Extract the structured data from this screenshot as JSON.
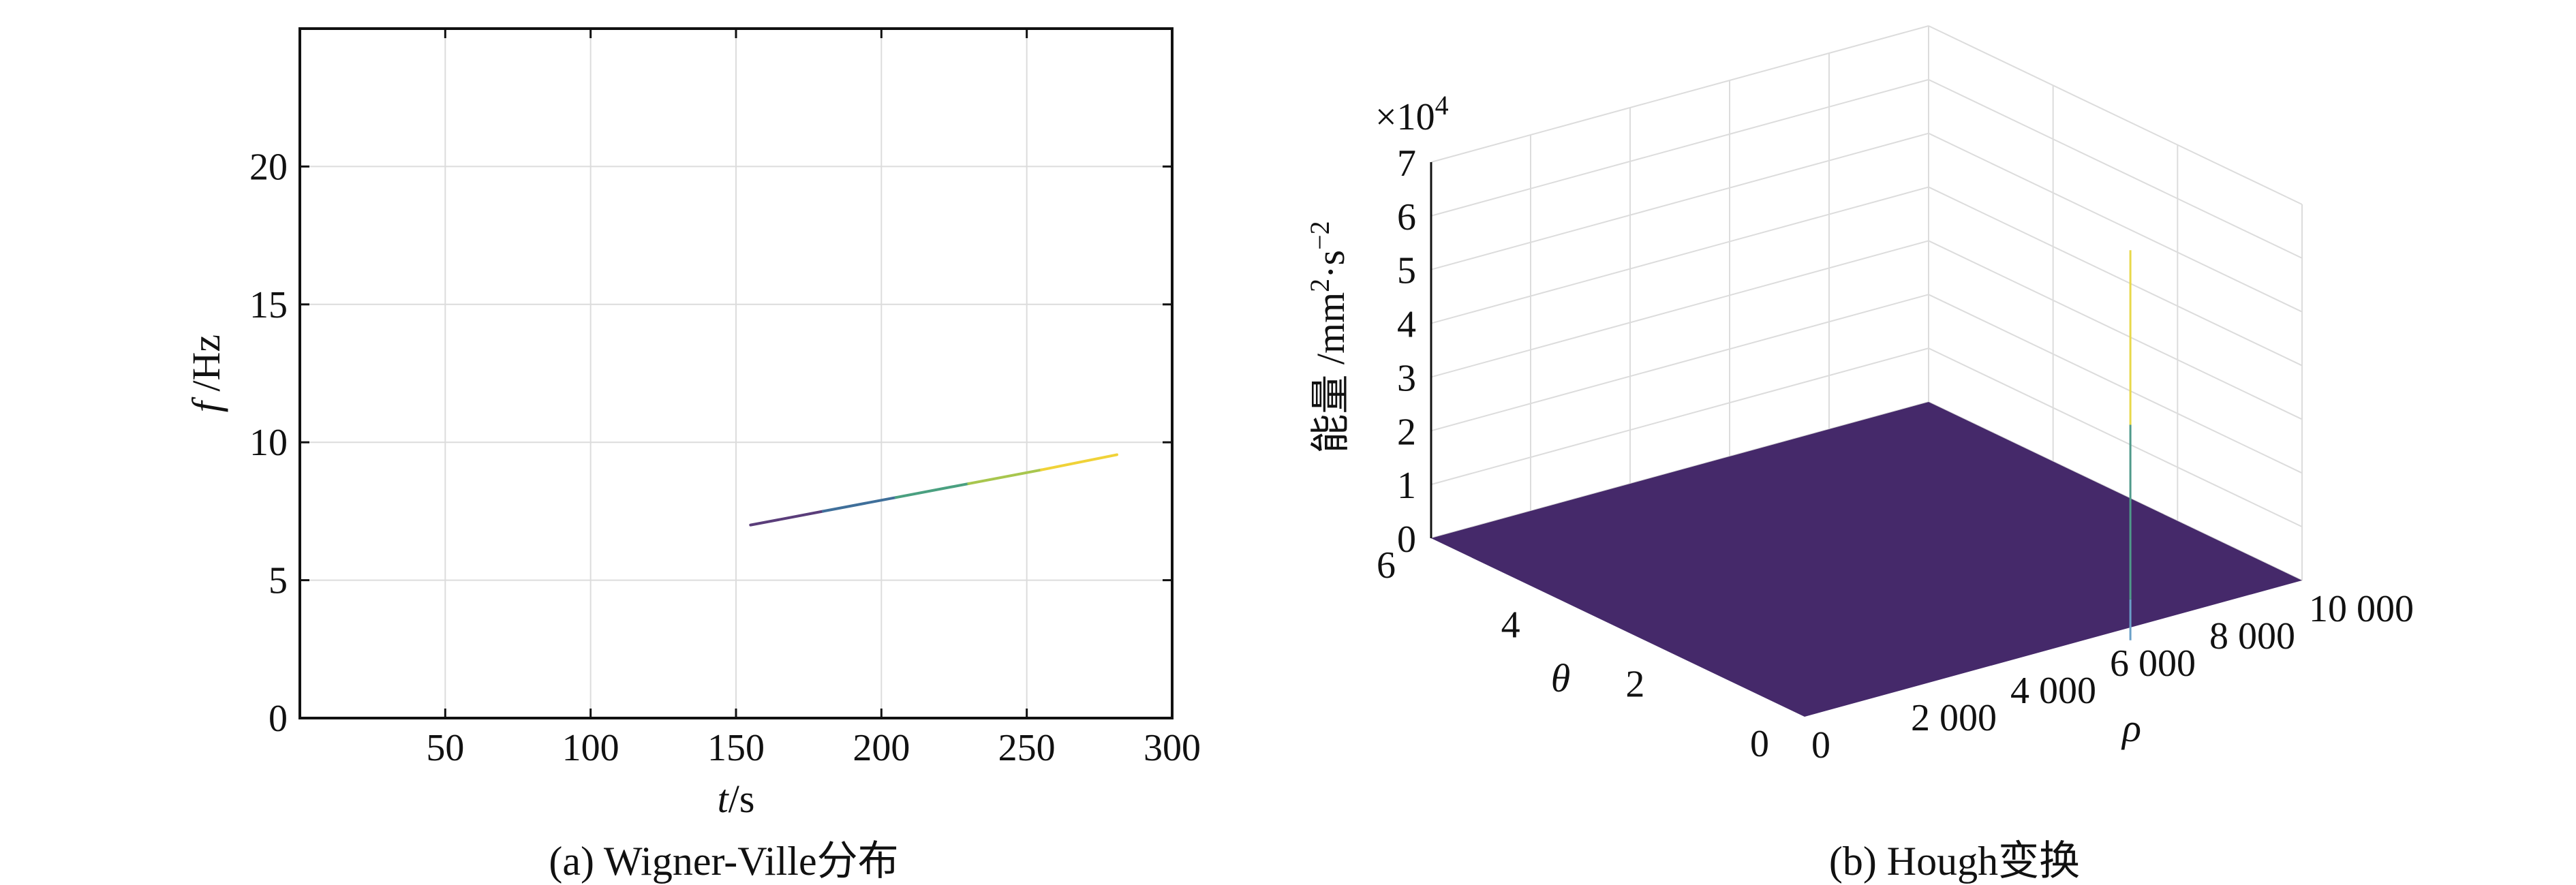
{
  "chart_data": [
    {
      "type": "line",
      "panel": "a",
      "caption": "(a) Wigner-Ville分布",
      "xlabel_italic": "t",
      "xlabel_unit": "/s",
      "ylabel_italic": "f",
      "ylabel_unit": " /Hz",
      "xlim": [
        0,
        300
      ],
      "ylim": [
        0,
        25
      ],
      "xticks": [
        50,
        100,
        150,
        200,
        250,
        300
      ],
      "yticks": [
        0,
        5,
        10,
        15,
        20
      ],
      "grid": true,
      "series": [
        {
          "x": [
            155,
            180,
            205,
            230,
            255,
            281
          ],
          "y": [
            7.0,
            7.5,
            8.0,
            8.5,
            9.0,
            9.55
          ],
          "colors": [
            "#5a3d7a",
            "#3f6f9a",
            "#4aa080",
            "#a8c64e",
            "#f0d238",
            "#5e7fa8"
          ]
        }
      ]
    },
    {
      "type": "surface3d",
      "panel": "b",
      "caption": "(b) Hough变换",
      "zlabel": "能量 /mm²·s⁻²",
      "zlabel_base": "能量 /mm",
      "zlabel_sup1": "2",
      "zlabel_mid": "·s",
      "zlabel_sup2": "−2",
      "z_multiplier": "×10",
      "z_multiplier_exp": "4",
      "xlabel": "ρ",
      "ylabel": "θ",
      "rho_ticks": [
        "0",
        "2 000",
        "4 000",
        "6 000",
        "8 000",
        "10 000"
      ],
      "theta_ticks": [
        "0",
        "2",
        "4",
        "6"
      ],
      "z_ticks": [
        "0",
        "1",
        "2",
        "3",
        "4",
        "5",
        "6",
        "7"
      ],
      "zlim": [
        0,
        7
      ],
      "surface_color": "#45296a",
      "peak": {
        "rho": 7300,
        "theta": 0.6,
        "z": 6.5
      }
    }
  ]
}
